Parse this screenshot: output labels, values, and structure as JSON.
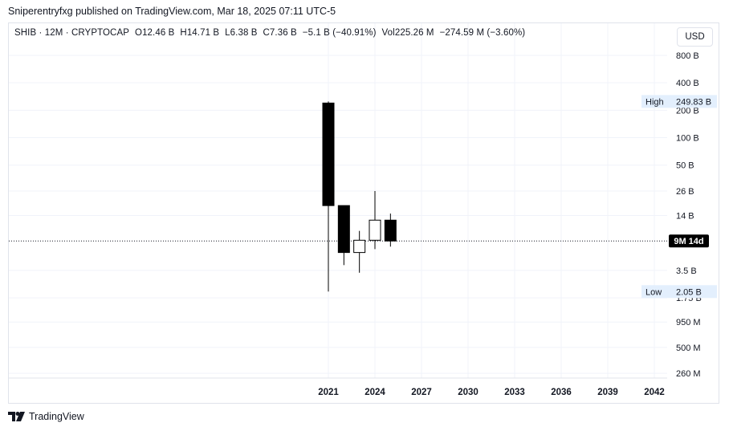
{
  "publisher_line": "Sniperentryfxg published on TradingView.com, Mar 18, 2025 07:11 UTC-5",
  "legend": {
    "symbol": "SHIB · 12M · CRYPTOCAP",
    "open_label": "O",
    "open": "12.46 B",
    "high_label": "H",
    "high": "14.71 B",
    "low_label": "L",
    "low": "6.38 B",
    "close_label": "C",
    "close": "7.36 B",
    "change": "−5.1 B (−40.91%)",
    "vol_label": "Vol",
    "vol": "225.26 M",
    "vol_change": "−274.59 M (−3.60%)"
  },
  "currency_button": "USD",
  "footer_brand": "TradingView",
  "colors": {
    "up": "#ffffff",
    "down": "#000000",
    "wick": "#000000",
    "grid": "#f0f3fa",
    "label_bg": "#e3effd",
    "countdown_bg": "#000000"
  },
  "chart_data": {
    "type": "candlestick",
    "scale": "log",
    "timeframe": "12M",
    "x_ticks": [
      "2021",
      "2024",
      "2027",
      "2030",
      "2033",
      "2036",
      "2039",
      "2042"
    ],
    "y_ticks": [
      {
        "label": "800 B",
        "value": 800000000000.0
      },
      {
        "label": "400 B",
        "value": 400000000000.0
      },
      {
        "label": "200 B",
        "value": 200000000000.0
      },
      {
        "label": "100 B",
        "value": 100000000000.0
      },
      {
        "label": "50 B",
        "value": 50000000000.0
      },
      {
        "label": "26 B",
        "value": 26000000000.0
      },
      {
        "label": "14 B",
        "value": 14000000000.0
      },
      {
        "label": "3.5 B",
        "value": 3500000000.0
      },
      {
        "label": "1.75 B",
        "value": 1750000000.0
      },
      {
        "label": "950 M",
        "value": 950000000.0
      },
      {
        "label": "500 M",
        "value": 500000000.0
      },
      {
        "label": "260 M",
        "value": 260000000.0
      }
    ],
    "candles": [
      {
        "year": 2021,
        "open": 240000000000.0,
        "high": 249830000000.0,
        "low": 2050000000.0,
        "close": 18000000000.0
      },
      {
        "year": 2022,
        "open": 18000000000.0,
        "high": 18000000000.0,
        "low": 4000000000.0,
        "close": 5500000000.0
      },
      {
        "year": 2023,
        "open": 5500000000.0,
        "high": 9500000000.0,
        "low": 3300000000.0,
        "close": 7500000000.0
      },
      {
        "year": 2024,
        "open": 7500000000.0,
        "high": 26000000000.0,
        "low": 6000000000.0,
        "close": 12460000000.0
      },
      {
        "year": 2025,
        "open": 12460000000.0,
        "high": 14710000000.0,
        "low": 6380000000.0,
        "close": 7360000000.0
      }
    ],
    "high_marker": {
      "label": "High",
      "value_label": "249.83 B",
      "value": 249830000000.0
    },
    "low_marker": {
      "label": "Low",
      "value_label": "2.05 B",
      "value": 2050000000.0
    },
    "current_price": 7360000000.0,
    "countdown_label": "9M 14d"
  }
}
